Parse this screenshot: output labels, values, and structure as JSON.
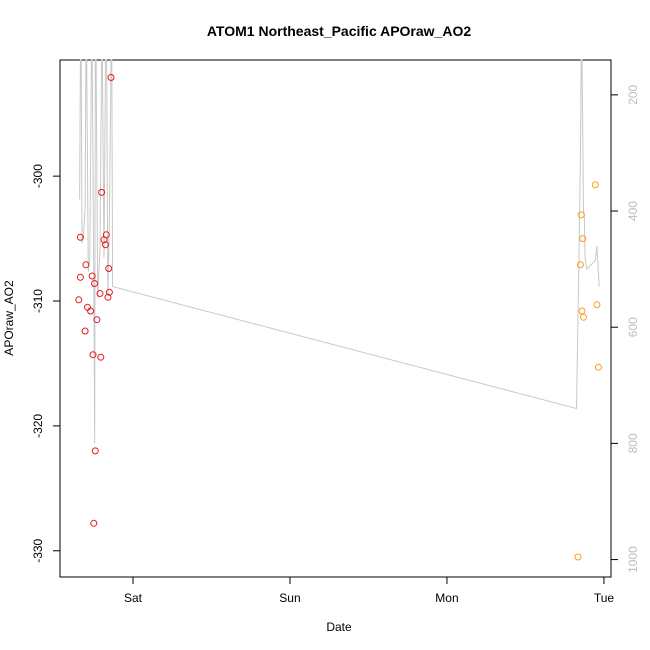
{
  "chart_data": {
    "type": "scatter",
    "title": "ATOM1 Northeast_Pacific APOraw_AO2",
    "xlabel": "Date",
    "ylabel": "APOraw_AO2",
    "x_ticks": [
      "Sat",
      "Sun",
      "Mon",
      "Tue"
    ],
    "x_tick_values": [
      1,
      2,
      3,
      4
    ],
    "xlim": [
      0.535,
      4.045
    ],
    "ylim": [
      -332.1,
      -290.7
    ],
    "y_ticks": [
      -300,
      -310,
      -320,
      -330
    ],
    "y_tick_labels": [
      "-300",
      "-310",
      "-320",
      "-330"
    ],
    "y2_ticks": [
      200,
      400,
      600,
      800,
      1000
    ],
    "y2_tick_labels": [
      "200",
      "400",
      "600",
      "800",
      "1000"
    ],
    "y2lim": [
      1030,
      140
    ],
    "grid": false,
    "colors": {
      "series1": "#e41a1c",
      "series2": "#ff9a1a",
      "line": "#c8c8c8"
    },
    "series": [
      {
        "marker": "circle-open",
        "color": "#e41a1c",
        "points": [
          [
            0.86,
            -292.1
          ],
          [
            0.665,
            -304.9
          ],
          [
            0.665,
            -308.1
          ],
          [
            0.655,
            -309.9
          ],
          [
            0.7,
            -307.1
          ],
          [
            0.71,
            -310.5
          ],
          [
            0.695,
            -312.4
          ],
          [
            0.73,
            -310.8
          ],
          [
            0.74,
            -308.0
          ],
          [
            0.755,
            -308.6
          ],
          [
            0.77,
            -311.5
          ],
          [
            0.745,
            -314.3
          ],
          [
            0.79,
            -309.4
          ],
          [
            0.795,
            -314.5
          ],
          [
            0.8,
            -301.3
          ],
          [
            0.815,
            -305.1
          ],
          [
            0.825,
            -305.5
          ],
          [
            0.83,
            -304.7
          ],
          [
            0.845,
            -307.4
          ],
          [
            0.84,
            -309.7
          ],
          [
            0.85,
            -309.3
          ],
          [
            0.76,
            -322.0
          ],
          [
            0.75,
            -327.8
          ]
        ]
      },
      {
        "marker": "circle-open",
        "color": "#ff9a1a",
        "points": [
          [
            3.835,
            -330.5
          ],
          [
            3.85,
            -307.1
          ],
          [
            3.855,
            -303.1
          ],
          [
            3.86,
            -310.8
          ],
          [
            3.865,
            -305.0
          ],
          [
            3.87,
            -311.3
          ],
          [
            3.945,
            -300.7
          ],
          [
            3.955,
            -310.3
          ],
          [
            3.965,
            -315.3
          ]
        ]
      }
    ],
    "depth_line": {
      "axis": "right",
      "points": [
        [
          0.66,
          380
        ],
        [
          0.665,
          140
        ],
        [
          0.67,
          140
        ],
        [
          0.675,
          455
        ],
        [
          0.685,
          440
        ],
        [
          0.695,
          395
        ],
        [
          0.7,
          140
        ],
        [
          0.705,
          140
        ],
        [
          0.715,
          505
        ],
        [
          0.725,
          480
        ],
        [
          0.735,
          140
        ],
        [
          0.74,
          140
        ],
        [
          0.752,
          600
        ],
        [
          0.756,
          800
        ],
        [
          0.76,
          140
        ],
        [
          0.765,
          140
        ],
        [
          0.775,
          550
        ],
        [
          0.79,
          465
        ],
        [
          0.8,
          140
        ],
        [
          0.805,
          140
        ],
        [
          0.815,
          480
        ],
        [
          0.825,
          140
        ],
        [
          0.832,
          140
        ],
        [
          0.84,
          545
        ],
        [
          0.85,
          415
        ],
        [
          0.86,
          140
        ],
        [
          0.865,
          140
        ],
        [
          0.87,
          530
        ],
        [
          3.825,
          740
        ],
        [
          3.84,
          500
        ],
        [
          3.85,
          310
        ],
        [
          3.855,
          140
        ],
        [
          3.86,
          140
        ],
        [
          3.87,
          400
        ],
        [
          3.875,
          405
        ],
        [
          3.88,
          480
        ],
        [
          3.89,
          500
        ],
        [
          3.945,
          485
        ],
        [
          3.955,
          460
        ],
        [
          3.97,
          530
        ]
      ]
    }
  }
}
